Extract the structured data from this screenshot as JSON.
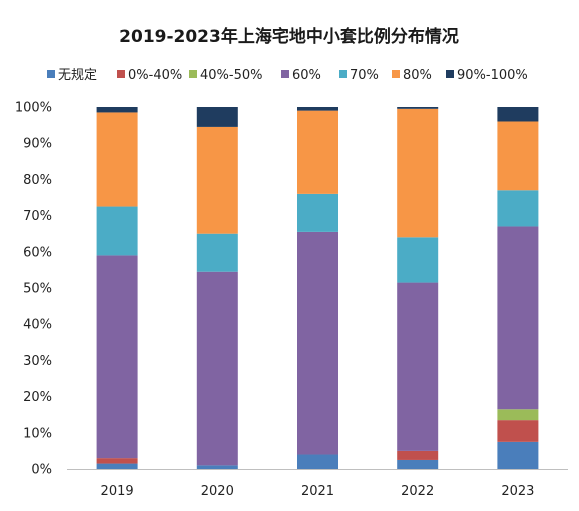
{
  "chart_data": {
    "type": "bar",
    "stacked": true,
    "percent_stacked": true,
    "title": "2019-2023年上海宅地中小套比例分布情况",
    "xlabel": "",
    "ylabel": "",
    "categories": [
      "2019",
      "2020",
      "2021",
      "2022",
      "2023"
    ],
    "ylim": [
      0,
      100
    ],
    "y_ticks": [
      "0%",
      "10%",
      "20%",
      "30%",
      "40%",
      "50%",
      "60%",
      "70%",
      "80%",
      "90%",
      "100%"
    ],
    "legend_position": "top",
    "grid": false,
    "series": [
      {
        "name": "无规定",
        "color": "#4a7ebb",
        "values": [
          1.5,
          1,
          4,
          2.5,
          7.5
        ]
      },
      {
        "name": "0%-40%",
        "color": "#c0504d",
        "values": [
          1.5,
          0,
          0,
          2.5,
          6
        ]
      },
      {
        "name": "40%-50%",
        "color": "#9bbb59",
        "values": [
          0,
          0,
          0,
          0,
          3
        ]
      },
      {
        "name": "60%",
        "color": "#8064a2",
        "values": [
          56,
          53.5,
          61.5,
          46.5,
          50.5
        ]
      },
      {
        "name": "70%",
        "color": "#4bacc6",
        "values": [
          13.5,
          10.5,
          10.5,
          12.5,
          10
        ]
      },
      {
        "name": "80%",
        "color": "#f79646",
        "values": [
          26,
          29.5,
          23,
          35.5,
          19
        ]
      },
      {
        "name": "90%-100%",
        "color": "#1f3c5f",
        "values": [
          1.5,
          5.5,
          1,
          0.5,
          4
        ]
      }
    ]
  }
}
